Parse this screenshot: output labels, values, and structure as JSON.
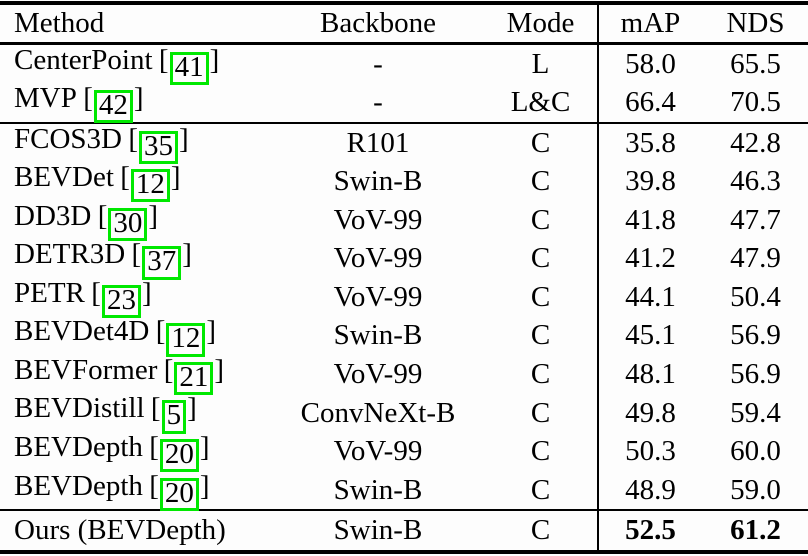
{
  "page": {
    "background": "#fdfdfd",
    "text_color": "#000000",
    "rule_color": "#000000",
    "citation_box_color": "#00e800"
  },
  "table": {
    "columns": [
      "Method",
      "Backbone",
      "Mode",
      "mAP",
      "NDS"
    ],
    "citation_brackets": {
      "open": "[",
      "close": "]"
    },
    "rows": [
      {
        "method": "CenterPoint",
        "cite": "41",
        "backbone": "-",
        "mode": "L",
        "map": "58.0",
        "nds": "65.5",
        "rule_after": false,
        "bold_metrics": false
      },
      {
        "method": "MVP",
        "cite": "42",
        "backbone": "-",
        "mode": "L&C",
        "map": "66.4",
        "nds": "70.5",
        "rule_after": true,
        "bold_metrics": false
      },
      {
        "method": "FCOS3D",
        "cite": "35",
        "backbone": "R101",
        "mode": "C",
        "map": "35.8",
        "nds": "42.8",
        "rule_after": false,
        "bold_metrics": false
      },
      {
        "method": "BEVDet",
        "cite": "12",
        "backbone": "Swin-B",
        "mode": "C",
        "map": "39.8",
        "nds": "46.3",
        "rule_after": false,
        "bold_metrics": false
      },
      {
        "method": "DD3D",
        "cite": "30",
        "backbone": "VoV-99",
        "mode": "C",
        "map": "41.8",
        "nds": "47.7",
        "rule_after": false,
        "bold_metrics": false
      },
      {
        "method": "DETR3D",
        "cite": "37",
        "backbone": "VoV-99",
        "mode": "C",
        "map": "41.2",
        "nds": "47.9",
        "rule_after": false,
        "bold_metrics": false
      },
      {
        "method": "PETR",
        "cite": "23",
        "backbone": "VoV-99",
        "mode": "C",
        "map": "44.1",
        "nds": "50.4",
        "rule_after": false,
        "bold_metrics": false
      },
      {
        "method": "BEVDet4D",
        "cite": "12",
        "backbone": "Swin-B",
        "mode": "C",
        "map": "45.1",
        "nds": "56.9",
        "rule_after": false,
        "bold_metrics": false
      },
      {
        "method": "BEVFormer",
        "cite": "21",
        "backbone": "VoV-99",
        "mode": "C",
        "map": "48.1",
        "nds": "56.9",
        "rule_after": false,
        "bold_metrics": false
      },
      {
        "method": "BEVDistill",
        "cite": "5",
        "backbone": "ConvNeXt-B",
        "mode": "C",
        "map": "49.8",
        "nds": "59.4",
        "rule_after": false,
        "bold_metrics": false
      },
      {
        "method": "BEVDepth",
        "cite": "20",
        "backbone": "VoV-99",
        "mode": "C",
        "map": "50.3",
        "nds": "60.0",
        "rule_after": false,
        "bold_metrics": false
      },
      {
        "method": "BEVDepth",
        "cite": "20",
        "backbone": "Swin-B",
        "mode": "C",
        "map": "48.9",
        "nds": "59.0",
        "rule_after": true,
        "bold_metrics": false
      },
      {
        "method": "Ours (BEVDepth)",
        "cite": null,
        "backbone": "Swin-B",
        "mode": "C",
        "map": "52.5",
        "nds": "61.2",
        "rule_after": false,
        "bold_metrics": true
      }
    ]
  }
}
